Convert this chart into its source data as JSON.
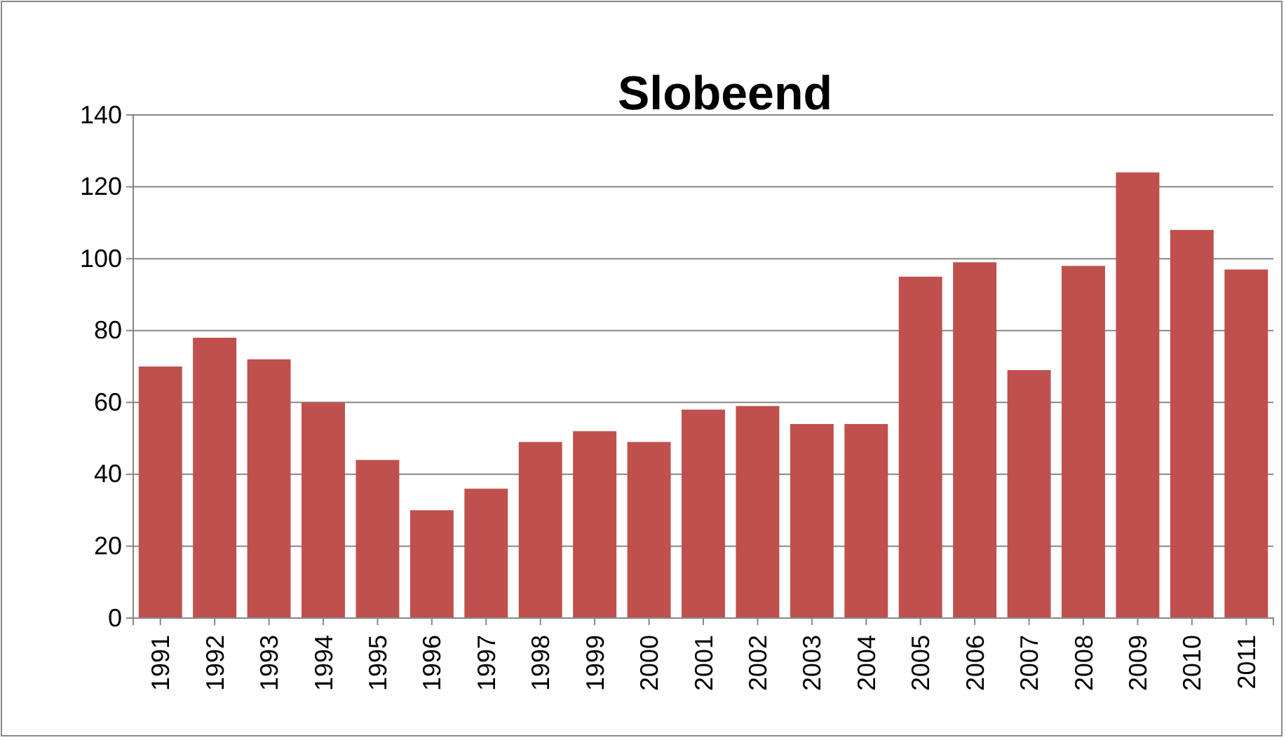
{
  "chart_data": {
    "type": "bar",
    "title": "Slobeend",
    "categories": [
      "1991",
      "1992",
      "1993",
      "1994",
      "1995",
      "1996",
      "1997",
      "1998",
      "1999",
      "2000",
      "2001",
      "2002",
      "2003",
      "2004",
      "2005",
      "2006",
      "2007",
      "2008",
      "2009",
      "2010",
      "2011"
    ],
    "series": [
      {
        "color": "#c0504d",
        "values": [
          70,
          78,
          72,
          60,
          44,
          30,
          36,
          49,
          52,
          49,
          58,
          59,
          54,
          54,
          95,
          99,
          69,
          98,
          124,
          108,
          97
        ]
      }
    ],
    "ylim": [
      0,
      140
    ],
    "yticks": [
      0,
      20,
      40,
      60,
      80,
      100,
      120,
      140
    ],
    "grid": "y"
  }
}
